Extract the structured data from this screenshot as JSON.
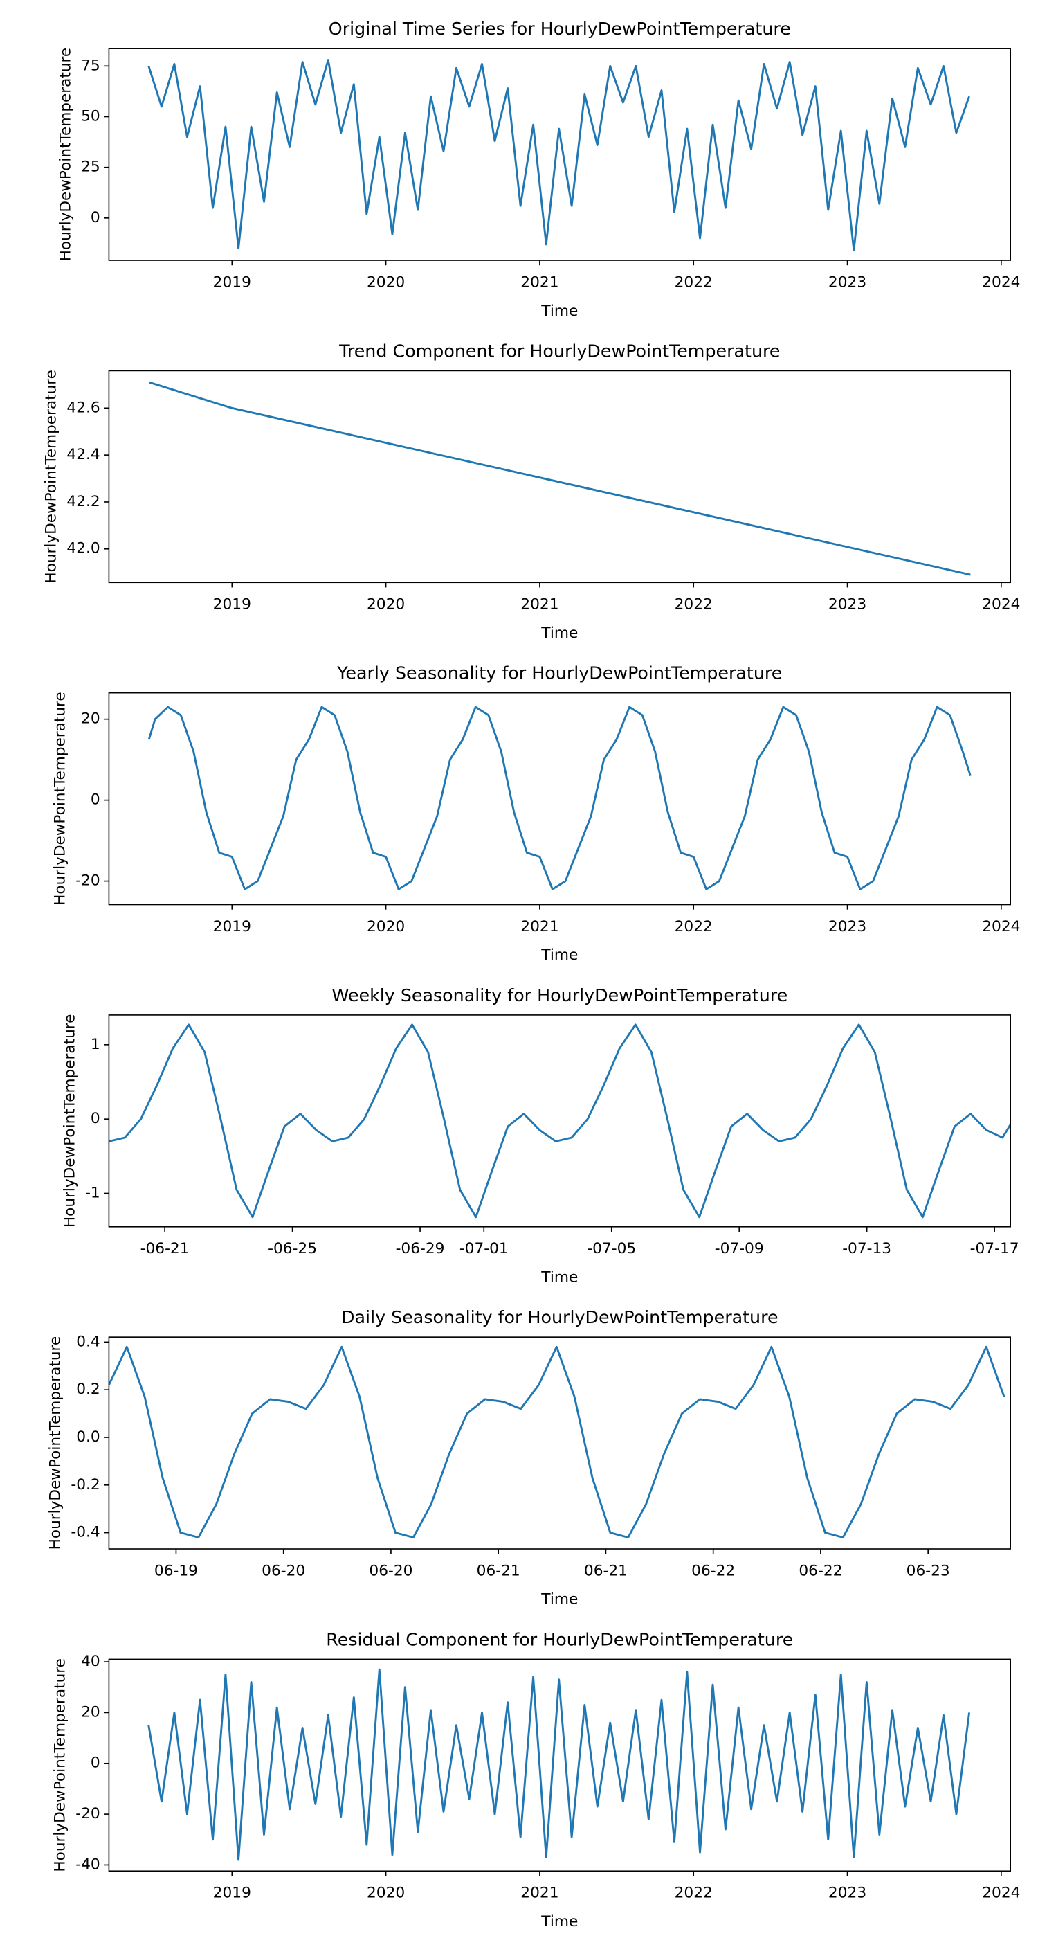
{
  "chart_data": [
    {
      "type": "line",
      "title": "Original Time Series for HourlyDewPointTemperature",
      "xlabel": "Time",
      "ylabel": "HourlyDewPointTemperature",
      "color": "#1f77b4",
      "x": [
        2018.458,
        2018.542,
        2018.625,
        2018.708,
        2018.792,
        2018.875,
        2018.958,
        2019.042,
        2019.125,
        2019.208,
        2019.292,
        2019.375,
        2019.458,
        2019.542,
        2019.625,
        2019.708,
        2019.792,
        2019.875,
        2019.958,
        2020.042,
        2020.125,
        2020.208,
        2020.292,
        2020.375,
        2020.458,
        2020.542,
        2020.625,
        2020.708,
        2020.792,
        2020.875,
        2020.958,
        2021.042,
        2021.125,
        2021.208,
        2021.292,
        2021.375,
        2021.458,
        2021.542,
        2021.625,
        2021.708,
        2021.792,
        2021.875,
        2021.958,
        2022.042,
        2022.125,
        2022.208,
        2022.292,
        2022.375,
        2022.458,
        2022.542,
        2022.625,
        2022.708,
        2022.792,
        2022.875,
        2022.958,
        2023.042,
        2023.125,
        2023.208,
        2023.292,
        2023.375,
        2023.458,
        2023.542,
        2023.625,
        2023.708,
        2023.792
      ],
      "values": [
        75,
        55,
        76,
        40,
        65,
        5,
        45,
        -15,
        45,
        8,
        62,
        35,
        77,
        56,
        78,
        42,
        66,
        2,
        40,
        -8,
        42,
        4,
        60,
        33,
        74,
        55,
        76,
        38,
        64,
        6,
        46,
        -13,
        44,
        6,
        61,
        36,
        75,
        57,
        75,
        40,
        63,
        3,
        44,
        -10,
        46,
        5,
        58,
        34,
        76,
        54,
        77,
        41,
        65,
        4,
        43,
        -16,
        43,
        7,
        59,
        35,
        74,
        56,
        75,
        42,
        60
      ],
      "xlim": [
        2018.2,
        2024.06
      ],
      "xticks": [
        2019,
        2020,
        2021,
        2022,
        2023,
        2024
      ],
      "ylim": [
        -20.9,
        83.6
      ],
      "yticks": [
        0,
        25,
        50,
        75
      ]
    },
    {
      "type": "line",
      "title": "Trend Component for HourlyDewPointTemperature",
      "xlabel": "Time",
      "ylabel": "HourlyDewPointTemperature",
      "color": "#1f77b4",
      "x": [
        2018.46,
        2019.0,
        2023.8
      ],
      "values": [
        42.71,
        42.6,
        41.89
      ],
      "xlim": [
        2018.2,
        2024.06
      ],
      "xticks": [
        2019,
        2020,
        2021,
        2022,
        2023,
        2024
      ],
      "ylim": [
        41.857,
        42.759
      ],
      "yticks": [
        {
          "value": 42,
          "label": "42.0"
        },
        42.2,
        42.4,
        42.6
      ]
    },
    {
      "type": "line",
      "title": "Yearly Seasonality for HourlyDewPointTemperature",
      "xlabel": "Time",
      "ylabel": "HourlyDewPointTemperature",
      "color": "#1f77b4",
      "x": [
        2018.46,
        2018.5,
        2018.583,
        2018.667,
        2018.75,
        2018.833,
        2018.917,
        2019,
        2019.083,
        2019.167,
        2019.25,
        2019.333,
        2019.417,
        2019.5,
        2019.583,
        2019.667,
        2019.75,
        2019.833,
        2019.917,
        2020,
        2020.083,
        2020.167,
        2020.25,
        2020.333,
        2020.417,
        2020.5,
        2020.583,
        2020.667,
        2020.75,
        2020.833,
        2020.917,
        2021,
        2021.083,
        2021.167,
        2021.25,
        2021.333,
        2021.417,
        2021.5,
        2021.583,
        2021.667,
        2021.75,
        2021.833,
        2021.917,
        2022,
        2022.083,
        2022.167,
        2022.25,
        2022.333,
        2022.417,
        2022.5,
        2022.583,
        2022.667,
        2022.75,
        2022.833,
        2022.917,
        2023,
        2023.083,
        2023.167,
        2023.25,
        2023.333,
        2023.417,
        2023.5,
        2023.583,
        2023.667,
        2023.75,
        2023.8
      ],
      "values": [
        15,
        20,
        23,
        21,
        12,
        -3,
        -13,
        -14,
        -22,
        -20,
        -12,
        -4,
        10,
        15,
        23,
        21,
        12,
        -3,
        -13,
        -14,
        -22,
        -20,
        -12,
        -4,
        10,
        15,
        23,
        21,
        12,
        -3,
        -13,
        -14,
        -22,
        -20,
        -12,
        -4,
        10,
        15,
        23,
        21,
        12,
        -3,
        -13,
        -14,
        -22,
        -20,
        -12,
        -4,
        10,
        15,
        23,
        21,
        12,
        -3,
        -13,
        -14,
        -22,
        -20,
        -12,
        -4,
        10,
        15,
        23,
        21,
        12,
        6
      ],
      "xlim": [
        2018.2,
        2024.06
      ],
      "xticks": [
        2019,
        2020,
        2021,
        2022,
        2023,
        2024
      ],
      "ylim": [
        -25.8,
        26.5
      ],
      "yticks": [
        -20,
        0,
        20
      ]
    },
    {
      "type": "line",
      "title": "Weekly Seasonality for HourlyDewPointTemperature",
      "xlabel": "Time",
      "ylabel": "HourlyDewPointTemperature",
      "color": "#1f77b4",
      "x": [
        -1.75,
        -1.25,
        -0.75,
        -0.25,
        0.25,
        0.75,
        1.25,
        1.75,
        2.25,
        2.75,
        3.25,
        3.75,
        4.25,
        4.75,
        5.25,
        5.75,
        6.25,
        6.75,
        7.25,
        7.75,
        8.25,
        8.75,
        9.25,
        9.75,
        10.25,
        10.75,
        11.25,
        11.75,
        12.25,
        12.75,
        13.25,
        13.75,
        14.25,
        14.75,
        15.25,
        15.75,
        16.25,
        16.75,
        17.25,
        17.75,
        18.25,
        18.75,
        19.25,
        19.75,
        20.25,
        20.75,
        21.25,
        21.75,
        22.25,
        22.75,
        23.25,
        23.75,
        24.25,
        24.75,
        25.25,
        25.75,
        26.25,
        26.75
      ],
      "values": [
        -0.3,
        -0.25,
        0.0,
        0.45,
        0.95,
        1.27,
        0.9,
        0.0,
        -0.95,
        -1.32,
        -0.7,
        -0.1,
        0.07,
        -0.15,
        -0.3,
        -0.25,
        0.0,
        0.45,
        0.95,
        1.27,
        0.9,
        0.0,
        -0.95,
        -1.32,
        -0.7,
        -0.1,
        0.07,
        -0.15,
        -0.3,
        -0.25,
        0.0,
        0.45,
        0.95,
        1.27,
        0.9,
        0.0,
        -0.95,
        -1.32,
        -0.7,
        -0.1,
        0.07,
        -0.15,
        -0.3,
        -0.25,
        0.0,
        0.45,
        0.95,
        1.27,
        0.9,
        0.0,
        -0.95,
        -1.32,
        -0.7,
        -0.1,
        0.07,
        -0.15,
        -0.25,
        0.1
      ],
      "xlim": [
        -1.75,
        26.5
      ],
      "xticks": [
        {
          "value": 0,
          "label": "-06-21"
        },
        {
          "value": 4,
          "label": "-06-25"
        },
        {
          "value": 8,
          "label": "-06-29"
        },
        {
          "value": 10,
          "label": "-07-01"
        },
        {
          "value": 14,
          "label": "-07-05"
        },
        {
          "value": 18,
          "label": "-07-09"
        },
        {
          "value": 22,
          "label": "-07-13"
        },
        {
          "value": 26,
          "label": "-07-17"
        }
      ],
      "ylim": [
        -1.45,
        1.4
      ],
      "yticks": [
        -1,
        0,
        1
      ]
    },
    {
      "type": "line",
      "title": "Daily Seasonality for HourlyDewPointTemperature",
      "xlabel": "Time",
      "ylabel": "HourlyDewPointTemperature",
      "color": "#1f77b4",
      "x": [
        4.5,
        6.5,
        8.5,
        10.5,
        12.5,
        14.5,
        16.5,
        18.5,
        20.5,
        22.5,
        24.5,
        26.5,
        28.5,
        30.5,
        32.5,
        34.5,
        36.5,
        38.5,
        40.5,
        42.5,
        44.5,
        46.5,
        48.5,
        50.5,
        52.5,
        54.5,
        56.5,
        58.5,
        60.5,
        62.5,
        64.5,
        66.5,
        68.5,
        70.5,
        72.5,
        74.5,
        76.5,
        78.5,
        80.5,
        82.5,
        84.5,
        86.5,
        88.5,
        90.5,
        92.5,
        94.5,
        96.5,
        98.5,
        100.5,
        102.5,
        104.5
      ],
      "values": [
        0.22,
        0.38,
        0.17,
        -0.17,
        -0.4,
        -0.42,
        -0.28,
        -0.07,
        0.1,
        0.16,
        0.15,
        0.12,
        0.22,
        0.38,
        0.17,
        -0.17,
        -0.4,
        -0.42,
        -0.28,
        -0.07,
        0.1,
        0.16,
        0.15,
        0.12,
        0.22,
        0.38,
        0.17,
        -0.17,
        -0.4,
        -0.42,
        -0.28,
        -0.07,
        0.1,
        0.16,
        0.15,
        0.12,
        0.22,
        0.38,
        0.17,
        -0.17,
        -0.4,
        -0.42,
        -0.28,
        -0.07,
        0.1,
        0.16,
        0.15,
        0.12,
        0.22,
        0.38,
        0.17
      ],
      "xlim": [
        4.5,
        105.2
      ],
      "xticks": [
        {
          "value": 12,
          "label": "06-19"
        },
        {
          "value": 24,
          "label": "06-20"
        },
        {
          "value": 36,
          "label": "06-20"
        },
        {
          "value": 48,
          "label": "06-21"
        },
        {
          "value": 60,
          "label": "06-21"
        },
        {
          "value": 72,
          "label": "06-22"
        },
        {
          "value": 84,
          "label": "06-22"
        },
        {
          "value": 96,
          "label": "06-23"
        }
      ],
      "ylim": [
        -0.468,
        0.421
      ],
      "yticks": [
        -0.4,
        -0.2,
        {
          "value": 0,
          "label": "0.0"
        },
        0.2,
        0.4
      ]
    },
    {
      "type": "line",
      "title": "Residual Component for HourlyDewPointTemperature",
      "xlabel": "Time",
      "ylabel": "HourlyDewPointTemperature",
      "color": "#1f77b4",
      "x": [
        2018.458,
        2018.542,
        2018.625,
        2018.708,
        2018.792,
        2018.875,
        2018.958,
        2019.042,
        2019.125,
        2019.208,
        2019.292,
        2019.375,
        2019.458,
        2019.542,
        2019.625,
        2019.708,
        2019.792,
        2019.875,
        2019.958,
        2020.042,
        2020.125,
        2020.208,
        2020.292,
        2020.375,
        2020.458,
        2020.542,
        2020.625,
        2020.708,
        2020.792,
        2020.875,
        2020.958,
        2021.042,
        2021.125,
        2021.208,
        2021.292,
        2021.375,
        2021.458,
        2021.542,
        2021.625,
        2021.708,
        2021.792,
        2021.875,
        2021.958,
        2022.042,
        2022.125,
        2022.208,
        2022.292,
        2022.375,
        2022.458,
        2022.542,
        2022.625,
        2022.708,
        2022.792,
        2022.875,
        2022.958,
        2023.042,
        2023.125,
        2023.208,
        2023.292,
        2023.375,
        2023.458,
        2023.542,
        2023.625,
        2023.708,
        2023.792
      ],
      "values": [
        15,
        -15,
        20,
        -20,
        25,
        -30,
        35,
        -38,
        32,
        -28,
        22,
        -18,
        14,
        -16,
        19,
        -21,
        26,
        -32,
        37,
        -36,
        30,
        -27,
        21,
        -19,
        15,
        -14,
        20,
        -20,
        24,
        -29,
        34,
        -37,
        33,
        -29,
        23,
        -17,
        16,
        -15,
        21,
        -22,
        25,
        -31,
        36,
        -35,
        31,
        -26,
        22,
        -18,
        15,
        -15,
        20,
        -19,
        27,
        -30,
        35,
        -37,
        32,
        -28,
        21,
        -17,
        14,
        -15,
        19,
        -20,
        20
      ],
      "xlim": [
        2018.2,
        2024.06
      ],
      "xticks": [
        2019,
        2020,
        2021,
        2022,
        2023,
        2024
      ],
      "ylim": [
        -42.4,
        41
      ],
      "yticks": [
        -40,
        -20,
        0,
        20,
        40
      ]
    }
  ]
}
